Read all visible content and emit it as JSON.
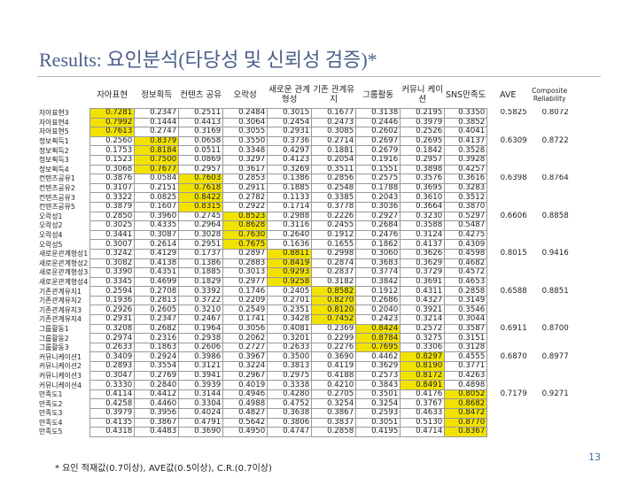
{
  "slide": {
    "title": "Results: 요인분석(타당성 및 신뢰성 검증)*",
    "footnote": "* 요인 적재값(0.7이상), AVE값(0.5이상), C.R.(0.7이상)",
    "page_number": "13"
  },
  "table": {
    "headers": [
      "자아표현",
      "정보획득",
      "컨텐츠 공유",
      "오락성",
      "새로운 관계형성",
      "기존 관계유지",
      "그룹활동",
      "커뮤니 케이션",
      "SNS만족도",
      "AVE",
      "Composite Reliability"
    ],
    "rows": [
      {
        "label": "자아표현3",
        "v": [
          "0.7281",
          "0.2347",
          "0.2511",
          "0.2484",
          "0.3015",
          "0.1677",
          "0.3138",
          "0.2195",
          "0.3350"
        ],
        "hl": 0,
        "ave": "0.5825",
        "cr": "0.8072"
      },
      {
        "label": "자아표현4",
        "v": [
          "0.7992",
          "0.1444",
          "0.4413",
          "0.3064",
          "0.2454",
          "0.2473",
          "0.2446",
          "0.3979",
          "0.3852"
        ],
        "hl": 0,
        "ave": "",
        "cr": ""
      },
      {
        "label": "자아표현5",
        "v": [
          "0.7613",
          "0.2747",
          "0.3169",
          "0.3055",
          "0.2931",
          "0.3085",
          "0.2602",
          "0.2526",
          "0.4041"
        ],
        "hl": 0,
        "ave": "",
        "cr": ""
      },
      {
        "label": "정보획득1",
        "v": [
          "0.2560",
          "0.8379",
          "0.0658",
          "0.3550",
          "0.3736",
          "0.2714",
          "0.2697",
          "0.2695",
          "0.4137"
        ],
        "hl": 1,
        "ave": "0.6309",
        "cr": "0.8722"
      },
      {
        "label": "정보획득2",
        "v": [
          "0.1753",
          "0.8184",
          "0.0511",
          "0.3348",
          "0.4297",
          "0.1881",
          "0.2679",
          "0.1842",
          "0.3528"
        ],
        "hl": 1,
        "ave": "",
        "cr": ""
      },
      {
        "label": "정보획득3",
        "v": [
          "0.1523",
          "0.7500",
          "0.0869",
          "0.3297",
          "0.4123",
          "0.2054",
          "0.1916",
          "0.2957",
          "0.3928"
        ],
        "hl": 1,
        "ave": "",
        "cr": ""
      },
      {
        "label": "정보획득4",
        "v": [
          "0.3068",
          "0.7677",
          "0.2957",
          "0.3617",
          "0.3269",
          "0.3511",
          "0.1551",
          "0.3898",
          "0.4257"
        ],
        "hl": 1,
        "ave": "",
        "cr": ""
      },
      {
        "label": "컨텐츠공유1",
        "v": [
          "0.3876",
          "0.0584",
          "0.7603",
          "0.2853",
          "0.1386",
          "0.2856",
          "0.2575",
          "0.3576",
          "0.3616"
        ],
        "hl": 2,
        "ave": "0.6398",
        "cr": "0.8764"
      },
      {
        "label": "컨텐츠공유2",
        "v": [
          "0.3107",
          "0.2151",
          "0.7618",
          "0.2911",
          "0.1885",
          "0.2548",
          "0.1788",
          "0.3695",
          "0.3283"
        ],
        "hl": 2,
        "ave": "",
        "cr": ""
      },
      {
        "label": "컨텐츠공유3",
        "v": [
          "0.3322",
          "0.0825",
          "0.8422",
          "0.2782",
          "0.1133",
          "0.3385",
          "0.2043",
          "0.3610",
          "0.3512"
        ],
        "hl": 2,
        "ave": "",
        "cr": ""
      },
      {
        "label": "컨텐츠공유5",
        "v": [
          "0.3879",
          "0.1607",
          "0.8315",
          "0.2922",
          "0.1714",
          "0.3778",
          "0.3036",
          "0.3664",
          "0.3870"
        ],
        "hl": 2,
        "ave": "",
        "cr": ""
      },
      {
        "label": "오락성1",
        "v": [
          "0.2850",
          "0.3960",
          "0.2745",
          "0.8523",
          "0.2988",
          "0.2226",
          "0.2927",
          "0.3230",
          "0.5297"
        ],
        "hl": 3,
        "ave": "0.6606",
        "cr": "0.8858"
      },
      {
        "label": "오락성2",
        "v": [
          "0.3025",
          "0.4335",
          "0.2964",
          "0.8628",
          "0.3116",
          "0.2455",
          "0.2684",
          "0.3588",
          "0.5487"
        ],
        "hl": 3,
        "ave": "",
        "cr": ""
      },
      {
        "label": "오락성4",
        "v": [
          "0.3441",
          "0.3087",
          "0.3028",
          "0.7630",
          "0.2640",
          "0.1912",
          "0.2476",
          "0.3124",
          "0.4275"
        ],
        "hl": 3,
        "ave": "",
        "cr": ""
      },
      {
        "label": "오락성5",
        "v": [
          "0.3007",
          "0.2614",
          "0.2951",
          "0.7675",
          "0.1636",
          "0.1655",
          "0.1862",
          "0.4137",
          "0.4309"
        ],
        "hl": 3,
        "ave": "",
        "cr": ""
      },
      {
        "label": "새로운관계형성1",
        "v": [
          "0.3242",
          "0.4129",
          "0.1737",
          "0.2897",
          "0.8811",
          "0.2998",
          "0.3060",
          "0.3626",
          "0.4598"
        ],
        "hl": 4,
        "ave": "0.8015",
        "cr": "0.9416"
      },
      {
        "label": "새로운관계형성2",
        "v": [
          "0.3082",
          "0.4138",
          "0.1386",
          "0.2883",
          "0.8419",
          "0.2874",
          "0.3683",
          "0.3629",
          "0.4682"
        ],
        "hl": 4,
        "ave": "",
        "cr": ""
      },
      {
        "label": "새로운관계형성3",
        "v": [
          "0.3390",
          "0.4351",
          "0.1885",
          "0.3013",
          "0.9293",
          "0.2837",
          "0.3774",
          "0.3729",
          "0.4572"
        ],
        "hl": 4,
        "ave": "",
        "cr": ""
      },
      {
        "label": "새로운관계형성4",
        "v": [
          "0.3345",
          "0.4699",
          "0.1829",
          "0.2977",
          "0.9258",
          "0.3182",
          "0.3842",
          "0.3691",
          "0.4653"
        ],
        "hl": 4,
        "ave": "",
        "cr": ""
      },
      {
        "label": "기존관계유지1",
        "v": [
          "0.2594",
          "0.2708",
          "0.3392",
          "0.1746",
          "0.2405",
          "0.8582",
          "0.1912",
          "0.4311",
          "0.2858"
        ],
        "hl": 5,
        "ave": "0.6588",
        "cr": "0.8851"
      },
      {
        "label": "기존관계유지2",
        "v": [
          "0.1936",
          "0.2813",
          "0.3722",
          "0.2209",
          "0.2701",
          "0.8270",
          "0.2686",
          "0.4327",
          "0.3149"
        ],
        "hl": 5,
        "ave": "",
        "cr": ""
      },
      {
        "label": "기존관계유지3",
        "v": [
          "0.2926",
          "0.2605",
          "0.3210",
          "0.2549",
          "0.2351",
          "0.8120",
          "0.2040",
          "0.3921",
          "0.3546"
        ],
        "hl": 5,
        "ave": "",
        "cr": ""
      },
      {
        "label": "기존관계유지4",
        "v": [
          "0.2931",
          "0.2347",
          "0.2467",
          "0.1741",
          "0.3428",
          "0.7452",
          "0.2423",
          "0.3214",
          "0.3044"
        ],
        "hl": 5,
        "ave": "",
        "cr": ""
      },
      {
        "label": "그룹활동1",
        "v": [
          "0.3208",
          "0.2682",
          "0.1964",
          "0.3056",
          "0.4081",
          "0.2369",
          "0.8424",
          "0.2572",
          "0.3587"
        ],
        "hl": 6,
        "ave": "0.6911",
        "cr": "0.8700"
      },
      {
        "label": "그룹활동2",
        "v": [
          "0.2974",
          "0.2316",
          "0.2938",
          "0.2062",
          "0.3201",
          "0.2299",
          "0.8784",
          "0.3275",
          "0.3151"
        ],
        "hl": 6,
        "ave": "",
        "cr": ""
      },
      {
        "label": "그룹활동3",
        "v": [
          "0.2633",
          "0.1863",
          "0.2606",
          "0.2727",
          "0.2633",
          "0.2276",
          "0.7695",
          "0.3306",
          "0.3128"
        ],
        "hl": 6,
        "ave": "",
        "cr": ""
      },
      {
        "label": "커뮤니케이션1",
        "v": [
          "0.3409",
          "0.2924",
          "0.3986",
          "0.3967",
          "0.3500",
          "0.3690",
          "0.4462",
          "0.8297",
          "0.4555"
        ],
        "hl": 7,
        "ave": "0.6870",
        "cr": "0.8977"
      },
      {
        "label": "커뮤니케이션2",
        "v": [
          "0.2893",
          "0.3554",
          "0.3121",
          "0.3224",
          "0.3813",
          "0.4119",
          "0.3629",
          "0.8190",
          "0.3771"
        ],
        "hl": 7,
        "ave": "",
        "cr": ""
      },
      {
        "label": "커뮤니케이션3",
        "v": [
          "0.3047",
          "0.2769",
          "0.3941",
          "0.2967",
          "0.2975",
          "0.4188",
          "0.2573",
          "0.8172",
          "0.4263"
        ],
        "hl": 7,
        "ave": "",
        "cr": ""
      },
      {
        "label": "커뮤니케이션4",
        "v": [
          "0.3330",
          "0.2840",
          "0.3939",
          "0.4019",
          "0.3338",
          "0.4210",
          "0.3843",
          "0.8491",
          "0.4898"
        ],
        "hl": 7,
        "ave": "",
        "cr": ""
      },
      {
        "label": "만족도1",
        "v": [
          "0.4114",
          "0.4412",
          "0.3144",
          "0.4946",
          "0.4280",
          "0.2705",
          "0.3501",
          "0.4176",
          "0.8052"
        ],
        "hl": 8,
        "ave": "0.7179",
        "cr": "0.9271"
      },
      {
        "label": "만족도2",
        "v": [
          "0.4258",
          "0.4460",
          "0.3304",
          "0.4988",
          "0.4752",
          "0.3254",
          "0.3254",
          "0.3767",
          "0.8682"
        ],
        "hl": 8,
        "ave": "",
        "cr": ""
      },
      {
        "label": "만족도3",
        "v": [
          "0.3979",
          "0.3956",
          "0.4024",
          "0.4827",
          "0.3638",
          "0.3867",
          "0.2593",
          "0.4633",
          "0.8472"
        ],
        "hl": 8,
        "ave": "",
        "cr": ""
      },
      {
        "label": "만족도4",
        "v": [
          "0.4135",
          "0.3867",
          "0.4791",
          "0.5642",
          "0.3806",
          "0.3837",
          "0.3051",
          "0.5130",
          "0.8770"
        ],
        "hl": 8,
        "ave": "",
        "cr": ""
      },
      {
        "label": "만족도5",
        "v": [
          "0.4318",
          "0.4483",
          "0.3690",
          "0.4950",
          "0.4747",
          "0.2858",
          "0.4195",
          "0.4714",
          "0.8367"
        ],
        "hl": 8,
        "ave": "",
        "cr": ""
      }
    ]
  }
}
